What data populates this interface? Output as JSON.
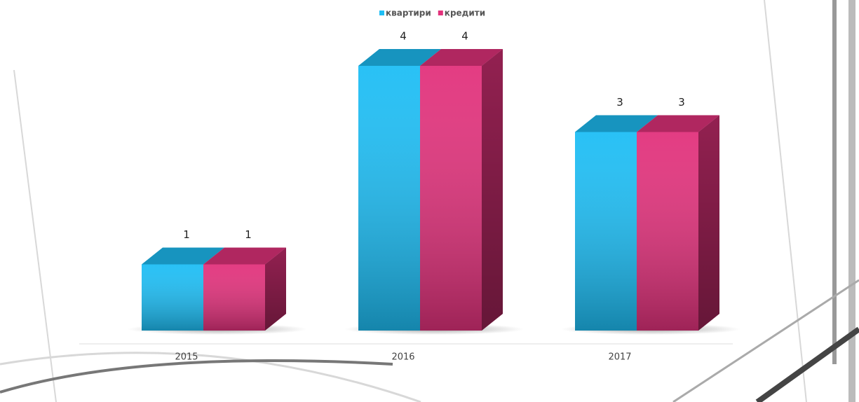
{
  "chart_data": {
    "type": "bar3d",
    "categories": [
      "2015",
      "2016",
      "2017"
    ],
    "series": [
      {
        "name": "квартири",
        "color": "#1ebef5",
        "values": [
          1,
          4,
          3
        ]
      },
      {
        "name": "кредити",
        "color": "#e2327c",
        "values": [
          1,
          4,
          3
        ]
      }
    ],
    "data_labels": true
  }
}
